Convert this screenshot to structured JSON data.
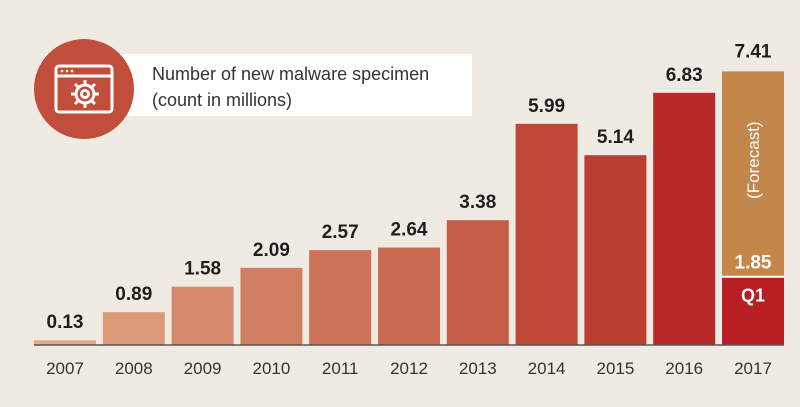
{
  "chart_data": {
    "type": "bar",
    "title": "Number of new malware specimen",
    "subtitle": "(count in millions)",
    "categories": [
      "2007",
      "2008",
      "2009",
      "2010",
      "2011",
      "2012",
      "2013",
      "2014",
      "2015",
      "2016",
      "2017"
    ],
    "values": [
      0.13,
      0.89,
      1.58,
      2.09,
      2.57,
      2.64,
      3.38,
      5.99,
      5.14,
      6.83,
      7.41
    ],
    "labels": [
      "0.13",
      "0.89",
      "1.58",
      "2.09",
      "2.57",
      "2.64",
      "3.38",
      "5.99",
      "5.14",
      "6.83",
      "7.41"
    ],
    "ylim": [
      0,
      7.8
    ],
    "grid": false,
    "forecast": {
      "category": "2017",
      "total": 7.41,
      "total_label": "7.41",
      "q1_value": 1.85,
      "q1_value_label": "1.85",
      "q1_label": "Q1",
      "forecast_label": "(Forecast)"
    },
    "colors": [
      "#e3aa8c",
      "#dc9a7b",
      "#d58a6d",
      "#d07f62",
      "#cb7259",
      "#c86b52",
      "#c45c47",
      "#bf4836",
      "#bb3f31",
      "#b82a2a",
      "#b81e22"
    ],
    "forecast_color": "#c3874b",
    "q1_color": "#b81e22",
    "axis_color": "#555555"
  },
  "legend": {
    "icon": "malware-gear-window-icon",
    "icon_color": "#c04e3a"
  }
}
